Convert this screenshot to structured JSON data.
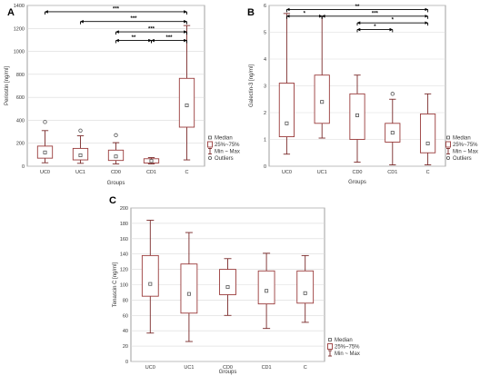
{
  "chart_data": [
    {
      "type": "box",
      "panel_label": "A",
      "xlabel": "Groups",
      "ylabel": "Periostin [ng/ml]",
      "ylim": [
        0,
        1400
      ],
      "yticks": [
        0,
        200,
        400,
        600,
        800,
        1000,
        1200,
        1400
      ],
      "categories": [
        "UC0",
        "UC1",
        "CD0",
        "CD1",
        "C"
      ],
      "boxes": [
        {
          "min": 30,
          "q1": 70,
          "median": 120,
          "q3": 175,
          "max": 310
        },
        {
          "min": 25,
          "q1": 55,
          "median": 95,
          "q3": 155,
          "max": 265
        },
        {
          "min": 20,
          "q1": 50,
          "median": 85,
          "q3": 140,
          "max": 205
        },
        {
          "min": 20,
          "q1": 28,
          "median": 45,
          "q3": 65,
          "max": 75
        },
        {
          "min": 55,
          "q1": 340,
          "median": 530,
          "q3": 765,
          "max": 1225
        }
      ],
      "outliers": [
        {
          "cat": 0,
          "value": 385
        },
        {
          "cat": 1,
          "value": 310
        },
        {
          "cat": 2,
          "value": 270
        }
      ],
      "significance": [
        {
          "from": 0,
          "to": 4,
          "label": "***",
          "y": 1345
        },
        {
          "from": 1,
          "to": 4,
          "label": "***",
          "y": 1260
        },
        {
          "from": 2,
          "to": 4,
          "label": "***",
          "y": 1170
        },
        {
          "from": 2,
          "to": 3,
          "label": "**",
          "y": 1095
        },
        {
          "from": 3,
          "to": 4,
          "label": "***",
          "y": 1095
        }
      ],
      "legend": [
        {
          "symbol": "median",
          "label": "Median"
        },
        {
          "symbol": "box",
          "label": "25%~75%"
        },
        {
          "symbol": "whisker",
          "label": "Min ~ Max"
        },
        {
          "symbol": "outlier",
          "label": "Outliers"
        }
      ]
    },
    {
      "type": "box",
      "panel_label": "B",
      "xlabel": "Groups",
      "ylabel": "Galectin-3 [ng/ml]",
      "ylim": [
        0,
        6
      ],
      "yticks": [
        0,
        1,
        2,
        3,
        4,
        5,
        6
      ],
      "categories": [
        "UC0",
        "UC1",
        "CD0",
        "CD1",
        "C"
      ],
      "boxes": [
        {
          "min": 0.45,
          "q1": 1.1,
          "median": 1.6,
          "q3": 3.1,
          "max": 5.7
        },
        {
          "min": 1.05,
          "q1": 1.6,
          "median": 2.4,
          "q3": 3.4,
          "max": 5.6
        },
        {
          "min": 0.15,
          "q1": 1.0,
          "median": 1.9,
          "q3": 2.7,
          "max": 3.4
        },
        {
          "min": 0.05,
          "q1": 0.9,
          "median": 1.25,
          "q3": 1.6,
          "max": 2.5
        },
        {
          "min": 0.05,
          "q1": 0.5,
          "median": 0.85,
          "q3": 1.95,
          "max": 2.7
        }
      ],
      "outliers": [
        {
          "cat": 3,
          "value": 2.7
        }
      ],
      "significance": [
        {
          "from": 0,
          "to": 4,
          "label": "**",
          "y": 5.85
        },
        {
          "from": 0,
          "to": 1,
          "label": "*",
          "y": 5.6
        },
        {
          "from": 1,
          "to": 4,
          "label": "***",
          "y": 5.6
        },
        {
          "from": 2,
          "to": 4,
          "label": "*",
          "y": 5.35
        },
        {
          "from": 2,
          "to": 3,
          "label": "*",
          "y": 5.1
        }
      ],
      "legend": [
        {
          "symbol": "median",
          "label": "Median"
        },
        {
          "symbol": "box",
          "label": "25%~75%"
        },
        {
          "symbol": "whisker",
          "label": "Min ~ Max"
        },
        {
          "symbol": "outlier",
          "label": "Outliers"
        }
      ]
    },
    {
      "type": "box",
      "panel_label": "C",
      "xlabel": "Groups",
      "ylabel": "Tenascin C [ng/ml]",
      "ylim": [
        0,
        200
      ],
      "yticks": [
        0,
        20,
        40,
        60,
        80,
        100,
        120,
        140,
        160,
        180,
        200
      ],
      "categories": [
        "UC0",
        "UC1",
        "CD0",
        "CD1",
        "C"
      ],
      "boxes": [
        {
          "min": 37,
          "q1": 85,
          "median": 101,
          "q3": 138,
          "max": 184
        },
        {
          "min": 26,
          "q1": 63,
          "median": 88,
          "q3": 127,
          "max": 168
        },
        {
          "min": 60,
          "q1": 87,
          "median": 97,
          "q3": 120,
          "max": 134
        },
        {
          "min": 43,
          "q1": 75,
          "median": 92,
          "q3": 118,
          "max": 141
        },
        {
          "min": 51,
          "q1": 76,
          "median": 89,
          "q3": 118,
          "max": 138
        }
      ],
      "outliers": [],
      "significance": [],
      "legend": [
        {
          "symbol": "median",
          "label": "Median"
        },
        {
          "symbol": "box",
          "label": "25%~75%"
        },
        {
          "symbol": "whisker",
          "label": "Min ~ Max"
        }
      ]
    }
  ]
}
